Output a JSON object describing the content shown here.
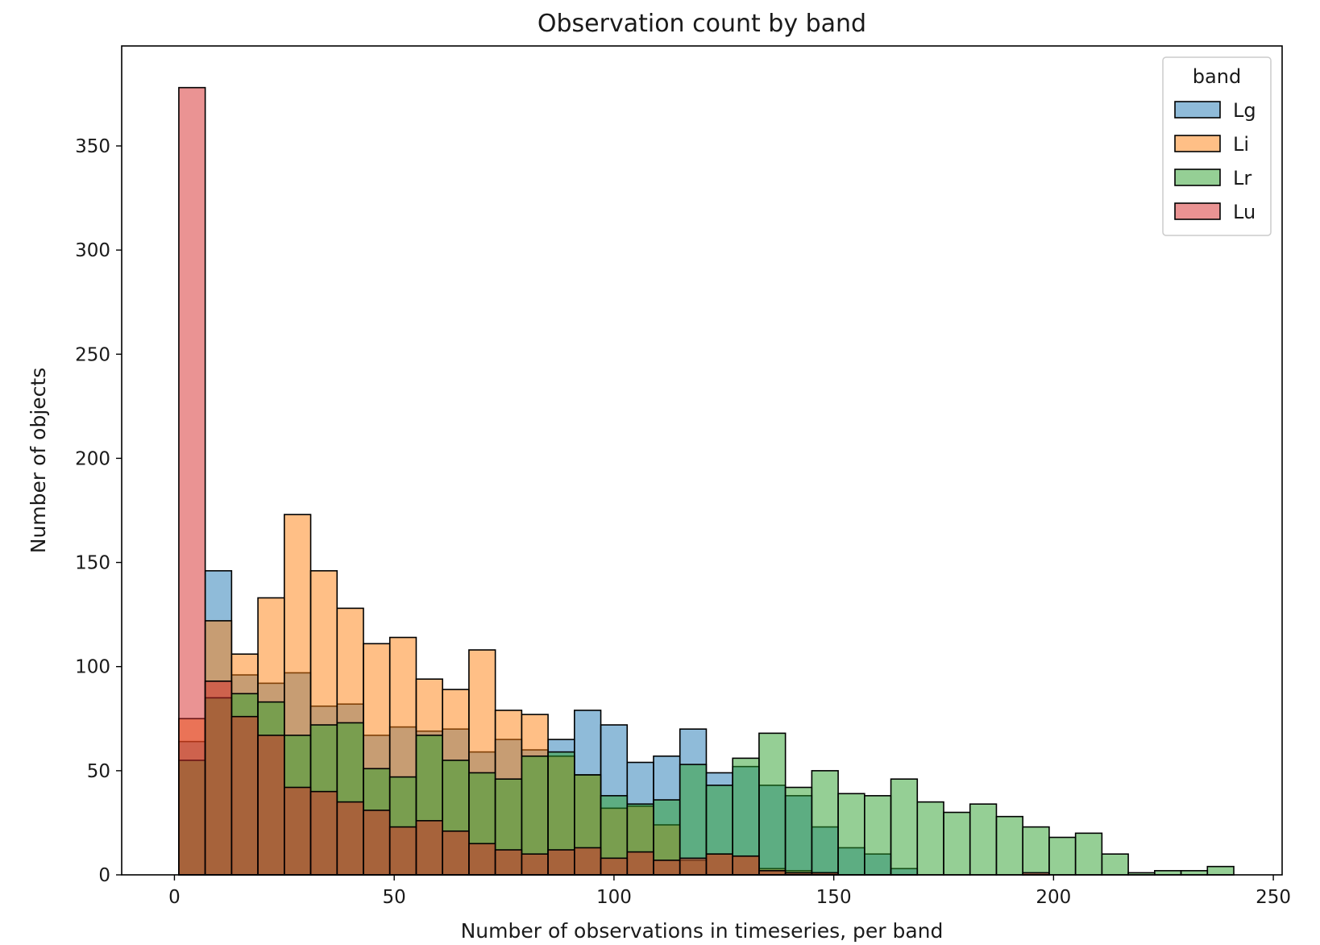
{
  "chart_data": {
    "type": "bar",
    "title": "Observation count by band",
    "xlabel": "Number of observations in timeseries, per band",
    "ylabel": "Number of objects",
    "xlim": [
      -12,
      252
    ],
    "ylim": [
      0,
      398
    ],
    "xticks": [
      0,
      50,
      100,
      150,
      200,
      250
    ],
    "yticks": [
      0,
      50,
      100,
      150,
      200,
      250,
      300,
      350
    ],
    "bin_start": 1,
    "bin_width": 6,
    "legend": {
      "title": "band",
      "position": "upper right"
    },
    "series": [
      {
        "name": "Lg",
        "color": "#1f77b4",
        "values": [
          64,
          146,
          96,
          92,
          97,
          81,
          82,
          67,
          71,
          69,
          70,
          59,
          65,
          60,
          65,
          79,
          72,
          54,
          57,
          70,
          49,
          52,
          43,
          38,
          23,
          13,
          10,
          3,
          0,
          0,
          0,
          0,
          0,
          0,
          0,
          0,
          0,
          0,
          0,
          0
        ]
      },
      {
        "name": "Li",
        "color": "#ff7f0e",
        "values": [
          75,
          122,
          106,
          133,
          173,
          146,
          128,
          111,
          114,
          94,
          89,
          108,
          79,
          77,
          57,
          48,
          32,
          33,
          24,
          7,
          10,
          9,
          3,
          2,
          1,
          0,
          0,
          0,
          0,
          0,
          0,
          0,
          0,
          0,
          0,
          0,
          0,
          0,
          0,
          0
        ]
      },
      {
        "name": "Lr",
        "color": "#2ca02c",
        "values": [
          55,
          85,
          87,
          83,
          67,
          72,
          73,
          51,
          47,
          67,
          55,
          49,
          46,
          57,
          59,
          48,
          38,
          34,
          36,
          53,
          43,
          56,
          68,
          42,
          50,
          39,
          38,
          46,
          35,
          30,
          34,
          28,
          23,
          18,
          20,
          10,
          1,
          2,
          2,
          4
        ]
      },
      {
        "name": "Lu",
        "color": "#d62728",
        "values": [
          378,
          93,
          76,
          67,
          42,
          40,
          35,
          31,
          23,
          26,
          21,
          15,
          12,
          10,
          12,
          13,
          8,
          11,
          7,
          8,
          10,
          9,
          2,
          1,
          1,
          0,
          0,
          0,
          0,
          0,
          0,
          0,
          1,
          0,
          0,
          0,
          0,
          0,
          0,
          0
        ]
      }
    ]
  }
}
